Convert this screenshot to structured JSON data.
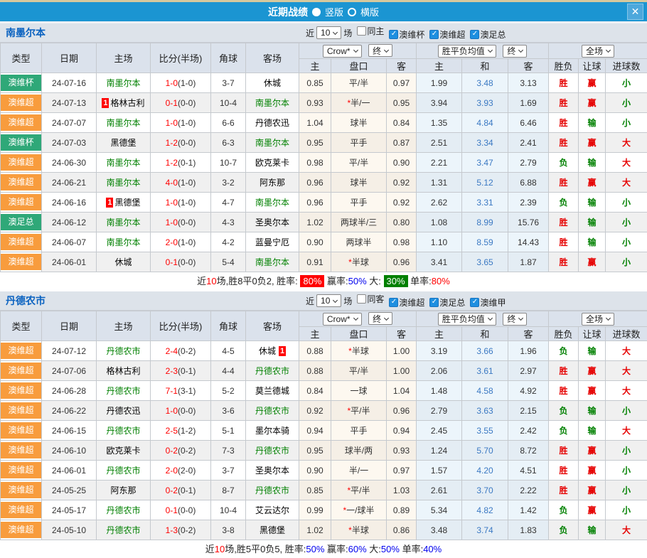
{
  "titlebar": {
    "title": "近期战绩",
    "radio_vertical": "竖版",
    "radio_horizontal": "横版",
    "close_glyph": "✕"
  },
  "palette": {
    "titlebar_blue": "#1b95d2",
    "type_colors": {
      "澳维杯": "#2fa878",
      "澳维超": "#f89c3d",
      "澳足总": "#2fa878"
    },
    "result_colors": {
      "胜": "#e60000",
      "赢": "#e60000",
      "大": "#e60000",
      "负": "#008000",
      "输": "#008000",
      "小": "#008000"
    },
    "team_green": "#008000",
    "score_red": "#ff0000"
  },
  "columns": {
    "type": "类型",
    "date": "日期",
    "home": "主场",
    "score": "比分(半场)",
    "corner": "角球",
    "away": "客场",
    "h_home": "主",
    "h_handicap": "盘口",
    "h_away": "客",
    "e_home": "主",
    "e_draw": "和",
    "e_away": "客",
    "r_result": "胜负",
    "r_handicap": "让球",
    "r_goals": "进球数"
  },
  "sections": [
    {
      "team": "南墨尔本",
      "filter": {
        "near": "近",
        "count": "10",
        "unit": "场",
        "checkboxes": [
          {
            "label": "同主",
            "checked": false
          },
          {
            "label": "澳维杯",
            "checked": true
          },
          {
            "label": "澳维超",
            "checked": true
          },
          {
            "label": "澳足总",
            "checked": true
          }
        ]
      },
      "dropdowns": {
        "company": "Crow*",
        "final1": "终",
        "avg": "胜平负均值",
        "final2": "终",
        "scope": "全场"
      },
      "rows": [
        {
          "type": "澳维杯",
          "date": "24-07-16",
          "home": "南墨尔本",
          "homeG": true,
          "score": "1-0",
          "half": "1-0",
          "corner": "3-7",
          "away": "休城",
          "a": [
            "0.85",
            "平/半",
            "0.97"
          ],
          "e": [
            "1.99",
            "3.48",
            "3.13"
          ],
          "r": [
            "胜",
            "赢",
            "小"
          ]
        },
        {
          "type": "澳维超",
          "date": "24-07-13",
          "home": "格林古利",
          "homeBadge": "1",
          "score": "0-1",
          "half": "0-0",
          "corner": "10-4",
          "away": "南墨尔本",
          "awayG": true,
          "a": [
            "0.93",
            "*半/一",
            "0.95"
          ],
          "e": [
            "3.94",
            "3.93",
            "1.69"
          ],
          "r": [
            "胜",
            "赢",
            "小"
          ]
        },
        {
          "type": "澳维超",
          "date": "24-07-07",
          "home": "南墨尔本",
          "homeG": true,
          "score": "1-0",
          "half": "1-0",
          "corner": "6-6",
          "away": "丹德农迅",
          "a": [
            "1.04",
            "球半",
            "0.84"
          ],
          "e": [
            "1.35",
            "4.84",
            "6.46"
          ],
          "r": [
            "胜",
            "输",
            "小"
          ]
        },
        {
          "type": "澳维杯",
          "date": "24-07-03",
          "home": "黑德堡",
          "score": "1-2",
          "half": "0-0",
          "corner": "6-3",
          "away": "南墨尔本",
          "awayG": true,
          "a": [
            "0.95",
            "平手",
            "0.87"
          ],
          "e": [
            "2.51",
            "3.34",
            "2.41"
          ],
          "r": [
            "胜",
            "赢",
            "大"
          ]
        },
        {
          "type": "澳维超",
          "date": "24-06-30",
          "home": "南墨尔本",
          "homeG": true,
          "score": "1-2",
          "half": "0-1",
          "corner": "10-7",
          "away": "欧克莱卡",
          "a": [
            "0.98",
            "平/半",
            "0.90"
          ],
          "e": [
            "2.21",
            "3.47",
            "2.79"
          ],
          "r": [
            "负",
            "输",
            "大"
          ]
        },
        {
          "type": "澳维超",
          "date": "24-06-21",
          "home": "南墨尔本",
          "homeG": true,
          "score": "4-0",
          "half": "1-0",
          "corner": "3-2",
          "away": "阿东那",
          "a": [
            "0.96",
            "球半",
            "0.92"
          ],
          "e": [
            "1.31",
            "5.12",
            "6.88"
          ],
          "r": [
            "胜",
            "赢",
            "大"
          ]
        },
        {
          "type": "澳维超",
          "date": "24-06-16",
          "home": "黑德堡",
          "homeBadge": "1",
          "score": "1-0",
          "half": "1-0",
          "corner": "4-7",
          "away": "南墨尔本",
          "awayG": true,
          "a": [
            "0.96",
            "平手",
            "0.92"
          ],
          "e": [
            "2.62",
            "3.31",
            "2.39"
          ],
          "r": [
            "负",
            "输",
            "小"
          ]
        },
        {
          "type": "澳足总",
          "date": "24-06-12",
          "home": "南墨尔本",
          "homeG": true,
          "score": "1-0",
          "half": "0-0",
          "corner": "4-3",
          "away": "圣奥尔本",
          "a": [
            "1.02",
            "两球半/三",
            "0.80"
          ],
          "e": [
            "1.08",
            "8.99",
            "15.76"
          ],
          "r": [
            "胜",
            "输",
            "小"
          ]
        },
        {
          "type": "澳维超",
          "date": "24-06-07",
          "home": "南墨尔本",
          "homeG": true,
          "score": "2-0",
          "half": "1-0",
          "corner": "4-2",
          "away": "蓝曼宁厄",
          "a": [
            "0.90",
            "两球半",
            "0.98"
          ],
          "e": [
            "1.10",
            "8.59",
            "14.43"
          ],
          "r": [
            "胜",
            "输",
            "小"
          ]
        },
        {
          "type": "澳维超",
          "date": "24-06-01",
          "home": "休城",
          "score": "0-1",
          "half": "0-0",
          "corner": "5-4",
          "away": "南墨尔本",
          "awayG": true,
          "a": [
            "0.91",
            "*半球",
            "0.96"
          ],
          "e": [
            "3.41",
            "3.65",
            "1.87"
          ],
          "r": [
            "胜",
            "赢",
            "小"
          ]
        }
      ],
      "summary": [
        {
          "t": "近"
        },
        {
          "t": "10",
          "s": "red"
        },
        {
          "t": "场,胜8平0负2, 胜率: "
        },
        {
          "t": "80%",
          "s": "bg-red"
        },
        {
          "t": " 赢率:"
        },
        {
          "t": "50%",
          "s": "blue"
        },
        {
          "t": " 大: "
        },
        {
          "t": "30%",
          "s": "bg-green"
        },
        {
          "t": " 单率:"
        },
        {
          "t": "80%",
          "s": "red"
        }
      ]
    },
    {
      "team": "丹德农市",
      "filter": {
        "near": "近",
        "count": "10",
        "unit": "场",
        "checkboxes": [
          {
            "label": "同客",
            "checked": false
          },
          {
            "label": "澳维超",
            "checked": true
          },
          {
            "label": "澳足总",
            "checked": true
          },
          {
            "label": "澳维甲",
            "checked": true
          }
        ]
      },
      "dropdowns": {
        "company": "Crow*",
        "final1": "终",
        "avg": "胜平负均值",
        "final2": "终",
        "scope": "全场"
      },
      "rows": [
        {
          "type": "澳维超",
          "date": "24-07-12",
          "home": "丹德农市",
          "homeG": true,
          "score": "2-4",
          "half": "0-2",
          "corner": "4-5",
          "away": "休城",
          "awayBadge": "1",
          "a": [
            "0.88",
            "*半球",
            "1.00"
          ],
          "e": [
            "3.19",
            "3.66",
            "1.96"
          ],
          "r": [
            "负",
            "输",
            "大"
          ]
        },
        {
          "type": "澳维超",
          "date": "24-07-06",
          "home": "格林古利",
          "score": "2-3",
          "half": "0-1",
          "corner": "4-4",
          "away": "丹德农市",
          "awayG": true,
          "a": [
            "0.88",
            "平/半",
            "1.00"
          ],
          "e": [
            "2.06",
            "3.61",
            "2.97"
          ],
          "r": [
            "胜",
            "赢",
            "大"
          ]
        },
        {
          "type": "澳维超",
          "date": "24-06-28",
          "home": "丹德农市",
          "homeG": true,
          "score": "7-1",
          "half": "3-1",
          "corner": "5-2",
          "away": "莫兰德城",
          "a": [
            "0.84",
            "一球",
            "1.04"
          ],
          "e": [
            "1.48",
            "4.58",
            "4.92"
          ],
          "r": [
            "胜",
            "赢",
            "大"
          ]
        },
        {
          "type": "澳维超",
          "date": "24-06-22",
          "home": "丹德农迅",
          "score": "1-0",
          "half": "0-0",
          "corner": "3-6",
          "away": "丹德农市",
          "awayG": true,
          "a": [
            "0.92",
            "*平/半",
            "0.96"
          ],
          "e": [
            "2.79",
            "3.63",
            "2.15"
          ],
          "r": [
            "负",
            "输",
            "小"
          ]
        },
        {
          "type": "澳维超",
          "date": "24-06-15",
          "home": "丹德农市",
          "homeG": true,
          "score": "2-5",
          "half": "1-2",
          "corner": "5-1",
          "away": "墨尔本骑",
          "a": [
            "0.94",
            "平手",
            "0.94"
          ],
          "e": [
            "2.45",
            "3.55",
            "2.42"
          ],
          "r": [
            "负",
            "输",
            "大"
          ]
        },
        {
          "type": "澳维超",
          "date": "24-06-10",
          "home": "欧克莱卡",
          "score": "0-2",
          "half": "0-2",
          "corner": "7-3",
          "away": "丹德农市",
          "awayG": true,
          "a": [
            "0.95",
            "球半/两",
            "0.93"
          ],
          "e": [
            "1.24",
            "5.70",
            "8.72"
          ],
          "r": [
            "胜",
            "赢",
            "小"
          ]
        },
        {
          "type": "澳维超",
          "date": "24-06-01",
          "home": "丹德农市",
          "homeG": true,
          "score": "2-0",
          "half": "2-0",
          "corner": "3-7",
          "away": "圣奥尔本",
          "a": [
            "0.90",
            "半/一",
            "0.97"
          ],
          "e": [
            "1.57",
            "4.20",
            "4.51"
          ],
          "r": [
            "胜",
            "赢",
            "小"
          ]
        },
        {
          "type": "澳维超",
          "date": "24-05-25",
          "home": "阿东那",
          "score": "0-2",
          "half": "0-1",
          "corner": "8-7",
          "away": "丹德农市",
          "awayG": true,
          "a": [
            "0.85",
            "*平/半",
            "1.03"
          ],
          "e": [
            "2.61",
            "3.70",
            "2.22"
          ],
          "r": [
            "胜",
            "赢",
            "小"
          ]
        },
        {
          "type": "澳维超",
          "date": "24-05-17",
          "home": "丹德农市",
          "homeG": true,
          "score": "0-1",
          "half": "0-0",
          "corner": "10-4",
          "away": "艾云达尔",
          "a": [
            "0.99",
            "*一/球半",
            "0.89"
          ],
          "e": [
            "5.34",
            "4.82",
            "1.42"
          ],
          "r": [
            "负",
            "赢",
            "小"
          ]
        },
        {
          "type": "澳维超",
          "date": "24-05-10",
          "home": "丹德农市",
          "homeG": true,
          "score": "1-3",
          "half": "0-2",
          "corner": "3-8",
          "away": "黑德堡",
          "a": [
            "1.02",
            "*半球",
            "0.86"
          ],
          "e": [
            "3.48",
            "3.74",
            "1.83"
          ],
          "r": [
            "负",
            "输",
            "大"
          ]
        }
      ],
      "summary": [
        {
          "t": "近"
        },
        {
          "t": "10",
          "s": "red"
        },
        {
          "t": "场,胜5平0负5, 胜率:"
        },
        {
          "t": "50%",
          "s": "blue"
        },
        {
          "t": " 赢率:"
        },
        {
          "t": "60%",
          "s": "blue"
        },
        {
          "t": " 大:"
        },
        {
          "t": "50%",
          "s": "blue"
        },
        {
          "t": " 单率:"
        },
        {
          "t": "40%",
          "s": "blue"
        }
      ]
    }
  ]
}
